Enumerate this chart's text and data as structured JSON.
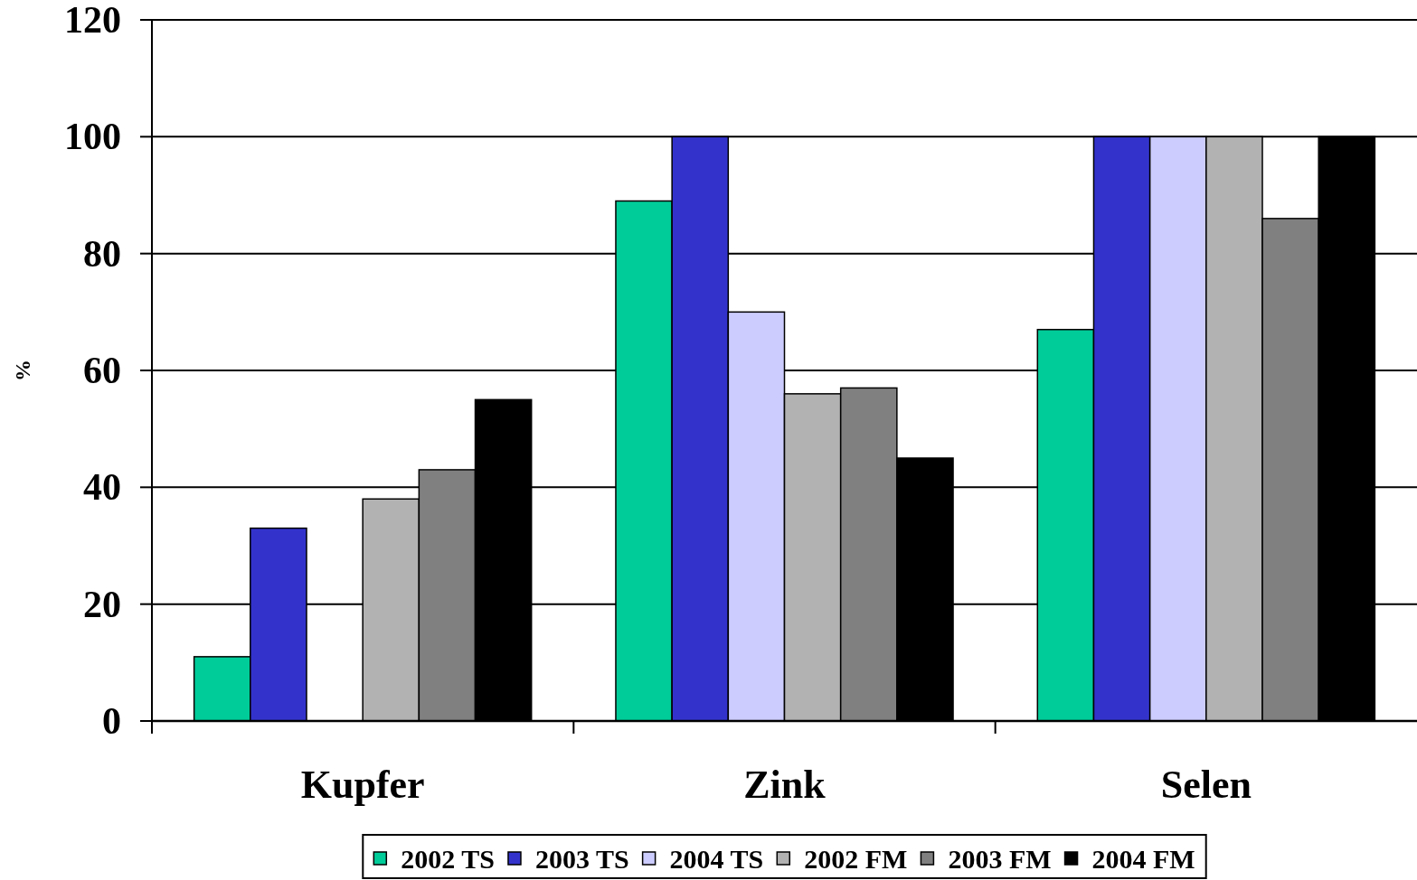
{
  "chart_data": {
    "type": "bar",
    "ylabel": "%",
    "categories": [
      "Kupfer",
      "Zink",
      "Selen"
    ],
    "series": [
      {
        "name": "2002 TS",
        "color": "#00cc99",
        "values": [
          11,
          89,
          67
        ]
      },
      {
        "name": "2003 TS",
        "color": "#3333cc",
        "values": [
          33,
          100,
          100
        ]
      },
      {
        "name": "2004 TS",
        "color": "#ccccff",
        "values": [
          null,
          70,
          100
        ]
      },
      {
        "name": "2002 FM",
        "color": "#b2b2b2",
        "values": [
          38,
          56,
          100
        ]
      },
      {
        "name": "2003 FM",
        "color": "#808080",
        "values": [
          43,
          57,
          86
        ]
      },
      {
        "name": "2004 FM",
        "color": "#000000",
        "values": [
          55,
          45,
          100
        ]
      }
    ],
    "ylim": [
      0,
      120
    ],
    "yticks": [
      0,
      20,
      40,
      60,
      80,
      100,
      120
    ],
    "grid": "y",
    "legend": "bottom"
  }
}
